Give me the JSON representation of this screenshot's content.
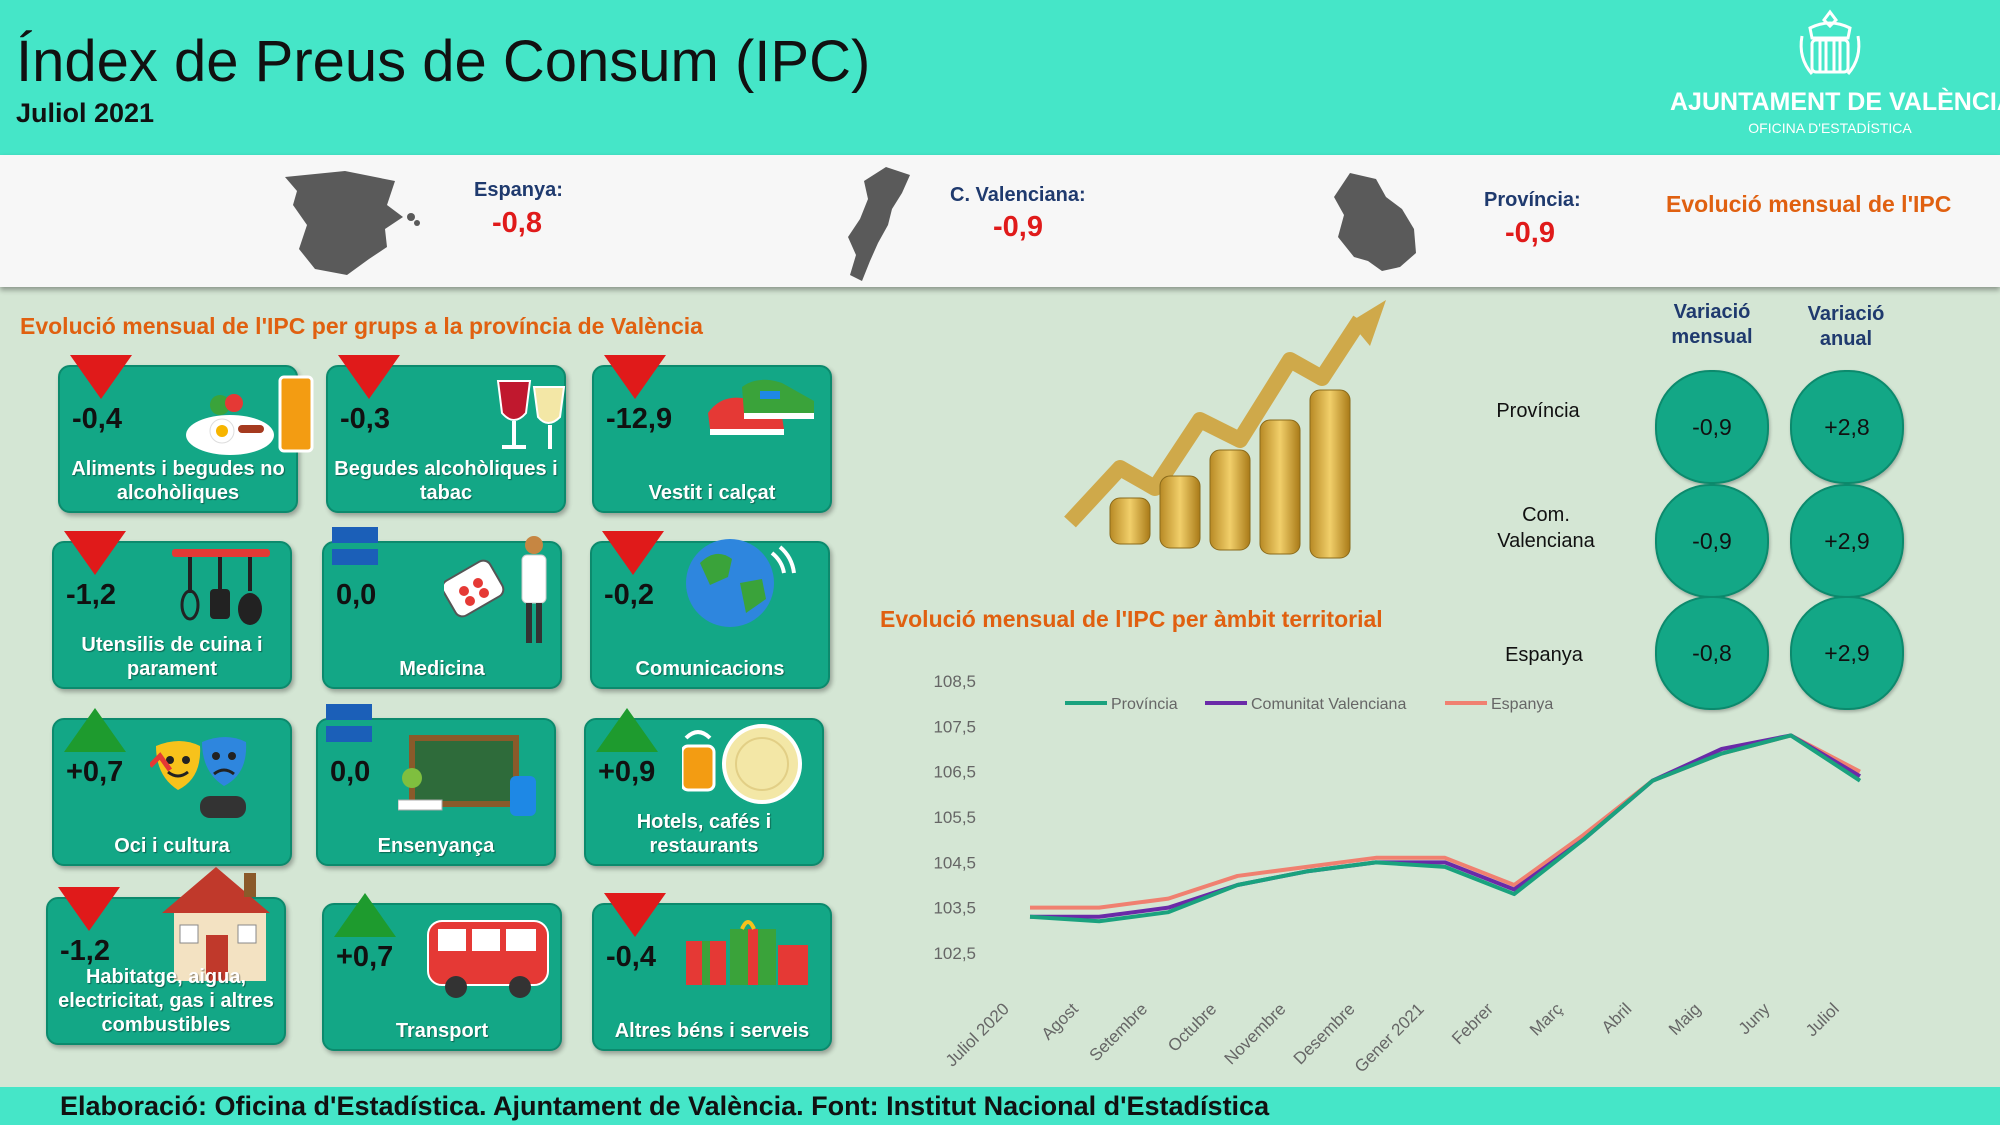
{
  "header": {
    "title": "Índex de Preus de Consum (IPC)",
    "subtitle": "Juliol 2021"
  },
  "logo": {
    "name": "AJUNTAMENT DE VALÈNCIA",
    "sub": "OFICINA D'ESTADÍSTICA"
  },
  "banner": {
    "regions": [
      {
        "label": "Espanya:",
        "value": "-0,8"
      },
      {
        "label": "C. Valenciana:",
        "value": "-0,9"
      },
      {
        "label": "Província:",
        "value": "-0,9"
      }
    ],
    "title": "Evolució mensual de l'IPC"
  },
  "groups_title": "Evolució mensual de l'IPC per grups a la província de València",
  "groups": [
    {
      "value": "-0,4",
      "label": "Aliments i begudes no alcohòliques",
      "trend": "down",
      "icon": "food-icon"
    },
    {
      "value": "-0,3",
      "label": "Begudes alcohòliques i tabac",
      "trend": "down",
      "icon": "wine-icon"
    },
    {
      "value": "-12,9",
      "label": "Vestit i calçat",
      "trend": "down",
      "icon": "shoe-icon"
    },
    {
      "value": "-1,2",
      "label": "Utensilis de cuina i parament",
      "trend": "down",
      "icon": "utensils-icon"
    },
    {
      "value": "0,0",
      "label": "Medicina",
      "trend": "flat",
      "icon": "medicine-icon"
    },
    {
      "value": "-0,2",
      "label": "Comunicacions",
      "trend": "down",
      "icon": "globe-icon"
    },
    {
      "value": "+0,7",
      "label": "Oci i cultura",
      "trend": "up",
      "icon": "masks-icon"
    },
    {
      "value": "0,0",
      "label": "Ensenyança",
      "trend": "flat",
      "icon": "chalkboard-icon"
    },
    {
      "value": "+0,9",
      "label": "Hotels, cafés i restaurants",
      "trend": "up",
      "icon": "plate-icon"
    },
    {
      "value": "-1,2",
      "label": "Habitatge, aigua, electricitat, gas i altres combustibles",
      "trend": "down",
      "icon": "house-icon"
    },
    {
      "value": "+0,7",
      "label": "Transport",
      "trend": "up",
      "icon": "bus-icon"
    },
    {
      "value": "-0,4",
      "label": "Altres béns i serveis",
      "trend": "down",
      "icon": "gift-icon"
    }
  ],
  "variation": {
    "headers": [
      "Variació mensual",
      "Variació anual"
    ],
    "rows": [
      {
        "label": "Província",
        "monthly": "-0,9",
        "annual": "+2,8"
      },
      {
        "label": "Com. Valenciana",
        "monthly": "-0,9",
        "annual": "+2,9"
      },
      {
        "label": "Espanya",
        "monthly": "-0,8",
        "annual": "+2,9"
      }
    ]
  },
  "chart_title": "Evolució mensual de l'IPC per àmbit territorial",
  "footer": "Elaboració: Oficina d'Estadística. Ajuntament de València. Font: Institut Nacional d'Estadística",
  "colors": {
    "accent": "#45e6c8",
    "card": "#13a786",
    "title_orange": "#e06010",
    "negative": "#e01a1a",
    "positive": "#1e9b2e"
  },
  "chart_data": {
    "type": "line",
    "categories": [
      "Juliol 2020",
      "Agost",
      "Setembre",
      "Octubre",
      "Novembre",
      "Desembre",
      "Gener 2021",
      "Febrer",
      "Març",
      "Abril",
      "Maig",
      "Juny",
      "Juliol"
    ],
    "series": [
      {
        "name": "Província",
        "color": "#1aa27e",
        "values": [
          103.3,
          103.2,
          103.4,
          104.0,
          104.3,
          104.5,
          104.4,
          103.8,
          105.0,
          106.3,
          106.9,
          107.3,
          106.3
        ]
      },
      {
        "name": "Comunitat Valenciana",
        "color": "#6a2aa8",
        "values": [
          103.3,
          103.3,
          103.5,
          104.0,
          104.3,
          104.5,
          104.5,
          103.9,
          105.0,
          106.3,
          107.0,
          107.3,
          106.4
        ]
      },
      {
        "name": "Espanya",
        "color": "#f08070",
        "values": [
          103.5,
          103.5,
          103.7,
          104.2,
          104.4,
          104.6,
          104.6,
          104.0,
          105.1,
          106.3,
          106.9,
          107.3,
          106.5
        ]
      }
    ],
    "yticks": [
      "102,5",
      "103,5",
      "104,5",
      "105,5",
      "106,5",
      "107,5",
      "108,5"
    ],
    "ylim": [
      102.5,
      108.5
    ],
    "legend": "top"
  }
}
